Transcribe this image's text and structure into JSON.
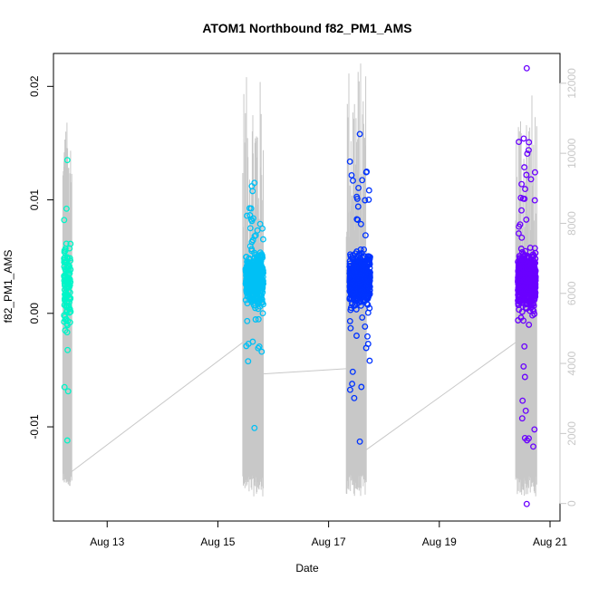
{
  "chart_data": {
    "type": "scatter",
    "title": "ATOM1 Northbound f82_PM1_AMS",
    "xlabel": "Date",
    "ylabel": "f82_PM1_AMS",
    "x_unit": "days",
    "x_ticks": [
      {
        "x": 13,
        "label": "Aug 13"
      },
      {
        "x": 15,
        "label": "Aug 15"
      },
      {
        "x": 17,
        "label": "Aug 17"
      },
      {
        "x": 19,
        "label": "Aug 19"
      },
      {
        "x": 21,
        "label": "Aug 21"
      }
    ],
    "y_ticks": [
      {
        "y": -0.01,
        "label": "-0.01"
      },
      {
        "y": 0.0,
        "label": "0.00"
      },
      {
        "y": 0.01,
        "label": "0.01"
      },
      {
        "y": 0.02,
        "label": "0.02"
      }
    ],
    "y2_ticks": [
      {
        "y": 0,
        "label": "0"
      },
      {
        "y": 2000,
        "label": "2000"
      },
      {
        "y": 4000,
        "label": "4000"
      },
      {
        "y": 6000,
        "label": "6000"
      },
      {
        "y": 8000,
        "label": "8000"
      },
      {
        "y": 10000,
        "label": "10000"
      },
      {
        "y": 12000,
        "label": "12000"
      }
    ],
    "xlim": [
      12.03,
      21.18
    ],
    "ylim": [
      -0.0183,
      0.0229
    ],
    "y2lim": [
      -500,
      12850
    ],
    "colors": {
      "axis": "#000000",
      "secondary_axis": "#c8c8c8",
      "secondary_line": "#c8c8c8"
    },
    "series": [
      {
        "color": "#00f5c8",
        "x_range": [
          12.22,
          12.34
        ],
        "y_center": 0.0025,
        "y_spread": 0.004,
        "y_min": -0.0112,
        "y_max": 0.0135,
        "n": 120
      },
      {
        "color": "#00c0f5",
        "x_range": [
          15.5,
          15.82
        ],
        "y_center": 0.003,
        "y_spread": 0.0025,
        "y_min": -0.0101,
        "y_max": 0.0115,
        "n": 420
      },
      {
        "color": "#0033ff",
        "x_range": [
          17.38,
          17.75
        ],
        "y_center": 0.003,
        "y_spread": 0.0025,
        "y_min": -0.0113,
        "y_max": 0.0158,
        "n": 650
      },
      {
        "color": "#6a00ff",
        "x_range": [
          20.42,
          20.74
        ],
        "y_center": 0.003,
        "y_spread": 0.0028,
        "y_min": -0.0168,
        "y_max": 0.0216,
        "n": 620
      }
    ],
    "secondary_series": {
      "axis": "right",
      "gaps": [
        {
          "x": [
            12.35,
            15.45
          ],
          "y": [
            900,
            4600
          ]
        },
        {
          "x": [
            15.82,
            17.32
          ],
          "y": [
            3700,
            3850
          ]
        },
        {
          "x": [
            17.65,
            20.38
          ],
          "y": [
            1500,
            4600
          ]
        }
      ],
      "segments": [
        {
          "x_range": [
            12.2,
            12.36
          ],
          "y_low": 500,
          "y_high": 11000
        },
        {
          "x_range": [
            15.45,
            15.82
          ],
          "y_low": 200,
          "y_high": 12200
        },
        {
          "x_range": [
            17.32,
            17.68
          ],
          "y_low": 200,
          "y_high": 12700
        },
        {
          "x_range": [
            20.38,
            20.76
          ],
          "y_low": 200,
          "y_high": 11800
        }
      ]
    }
  }
}
